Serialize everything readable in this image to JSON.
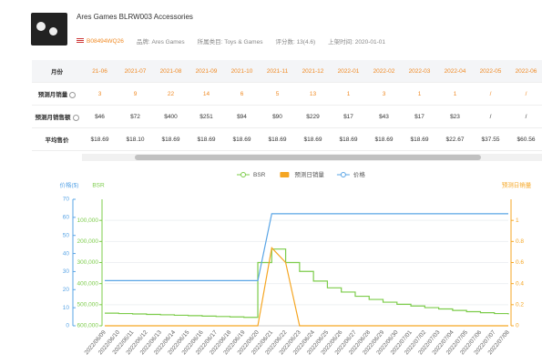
{
  "product": {
    "title": "Ares Games BLRW003 Accessories",
    "asin": "B08494WQ26",
    "brand": "品牌: Ares Games",
    "category": "所属类目: Toys & Games",
    "rating": "评分数: 13(4.6)",
    "listed": "上架时间: 2020-01-01"
  },
  "table": {
    "header": [
      "月份",
      "21-06",
      "2021-07",
      "2021-08",
      "2021-09",
      "2021-10",
      "2021-11",
      "2021-12",
      "2022-01",
      "2022-02",
      "2022-03",
      "2022-04",
      "2022-05",
      "2022-06"
    ],
    "rows": [
      [
        "预测月销量",
        "3",
        "9",
        "22",
        "14",
        "6",
        "5",
        "13",
        "1",
        "3",
        "1",
        "1",
        "/",
        "/"
      ],
      [
        "预测月销售额",
        "$46",
        "$72",
        "$400",
        "$251",
        "$94",
        "$90",
        "$229",
        "$17",
        "$43",
        "$17",
        "$23",
        "/",
        "/"
      ],
      [
        "平均售价",
        "$18.69",
        "$18.10",
        "$18.69",
        "$18.69",
        "$18.69",
        "$18.69",
        "$18.69",
        "$18.69",
        "$18.69",
        "$18.69",
        "$22.67",
        "$37.55",
        "$60.56"
      ]
    ]
  },
  "chart_data": {
    "type": "line",
    "y_label": "价格($)",
    "y2_label": "BSR",
    "y3_label": "预测日销量",
    "x": [
      "2022/06/09",
      "2022/06/10",
      "2022/06/11",
      "2022/06/12",
      "2022/06/13",
      "2022/06/14",
      "2022/06/15",
      "2022/06/16",
      "2022/06/17",
      "2022/06/18",
      "2022/06/19",
      "2022/06/20",
      "2022/06/21",
      "2022/06/22",
      "2022/06/23",
      "2022/06/24",
      "2022/06/25",
      "2022/06/26",
      "2022/06/27",
      "2022/06/28",
      "2022/06/29",
      "2022/06/30",
      "2022/07/01",
      "2022/07/02",
      "2022/07/03",
      "2022/07/04",
      "2022/07/05",
      "2022/07/06",
      "2022/07/07",
      "2022/07/08"
    ],
    "ylim": [
      0,
      70
    ],
    "yticks": [
      0,
      10,
      20,
      30,
      40,
      50,
      60,
      70
    ],
    "y2lim": [
      0,
      600000
    ],
    "y2_reverse": true,
    "y2ticks": [
      {
        "value": 100000,
        "label": "100,000"
      },
      {
        "value": 200000,
        "label": "200,000"
      },
      {
        "value": 300000,
        "label": "300,000"
      },
      {
        "value": 400000,
        "label": "400,000"
      },
      {
        "value": 500000,
        "label": "500,000"
      },
      {
        "value": 600000,
        "label": "600,000"
      }
    ],
    "y3lim": [
      0,
      1.2
    ],
    "y3ticks": [
      0,
      0.2,
      0.4,
      0.6,
      0.8,
      1
    ],
    "grid": true,
    "series": [
      {
        "name": "BSR",
        "color": "#7ccc4a",
        "axis": "y2",
        "step": true,
        "values": [
          540000,
          542000,
          544000,
          546000,
          548000,
          550000,
          552000,
          554000,
          556000,
          558000,
          560000,
          300000,
          236000,
          300000,
          342000,
          388000,
          420000,
          440000,
          460000,
          475000,
          488000,
          498000,
          506000,
          514000,
          520000,
          527000,
          533000,
          538000,
          542000,
          546000
        ]
      },
      {
        "name": "预测日销量",
        "color": "#f5a623",
        "axis": "y3",
        "values": [
          0,
          0,
          0,
          0,
          0,
          0,
          0,
          0,
          0,
          0,
          0,
          0,
          0.74,
          0.6,
          0,
          0,
          0,
          0,
          0,
          0,
          0,
          0,
          0,
          0,
          0,
          0,
          0,
          0,
          0,
          0
        ]
      },
      {
        "name": "价格",
        "color": "#5aa5e6",
        "values": [
          25,
          25,
          25,
          25,
          25,
          25,
          25,
          25,
          25,
          25,
          25,
          25,
          62,
          62,
          62,
          62,
          62,
          62,
          62,
          62,
          62,
          62,
          62,
          62,
          62,
          62,
          62,
          62,
          62,
          62
        ]
      }
    ]
  }
}
